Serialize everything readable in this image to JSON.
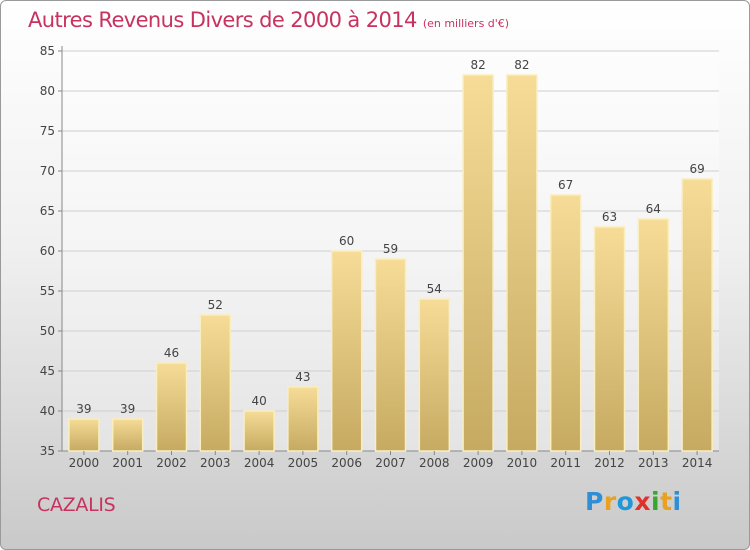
{
  "chart_title": "Autres Revenus Divers de 2000 à 2014",
  "chart_subtitle": "(en milliers d'€)",
  "town": "CAZALIS",
  "logo": {
    "letters": [
      "P",
      "r",
      "o",
      "x",
      "i",
      "t",
      "i"
    ],
    "colors": [
      "#2e8fd6",
      "#e9a11f",
      "#1f97d8",
      "#e0312a",
      "#3aa52f",
      "#e9a11f",
      "#2e8fd6"
    ]
  },
  "colors": {
    "title": "#c8325f",
    "bar_top": "#f6dc97",
    "bar_bottom": "#c6aa62",
    "bar_edge": "#f8eebf",
    "label": "#444444",
    "grid": "#cfcfcf"
  },
  "chart_data": {
    "type": "bar",
    "categories": [
      "2000",
      "2001",
      "2002",
      "2003",
      "2004",
      "2005",
      "2006",
      "2007",
      "2008",
      "2009",
      "2010",
      "2011",
      "2012",
      "2013",
      "2014"
    ],
    "values": [
      39,
      39,
      46,
      52,
      40,
      43,
      60,
      59,
      54,
      82,
      82,
      67,
      63,
      64,
      69
    ],
    "ylim": [
      35,
      85
    ],
    "yticks": [
      35,
      40,
      45,
      50,
      55,
      60,
      65,
      70,
      75,
      80,
      85
    ],
    "title": "Autres Revenus Divers de 2000 à 2014",
    "xlabel": "",
    "ylabel": "",
    "grid": true,
    "legend": "none"
  }
}
